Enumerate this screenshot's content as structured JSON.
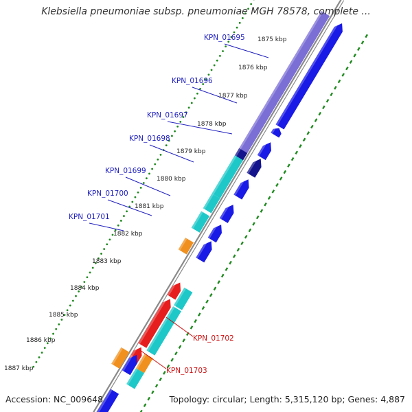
{
  "title": "Klebsiella pneumoniae subsp. pneumoniae MGH 78578, complete ...",
  "accession": "Accession: NC_009648",
  "summary": "Topology: circular; Length: 5,315,120 bp; Genes: 4,887",
  "colors": {
    "blue": "#1a1ae6",
    "purple": "#7b6fd6",
    "navy": "#14148c",
    "cyan": "#1ec8c8",
    "orange": "#f0901e",
    "red": "#e61e1e",
    "label_blue": "#2020c0",
    "label_red": "#cc1010",
    "tick": "#1f8a1f",
    "backbone": "#8a8a8a"
  },
  "kbp_ticks": [
    "1875 kbp",
    "1876 kbp",
    "1877 kbp",
    "1878 kbp",
    "1879 kbp",
    "1880 kbp",
    "1881 kbp",
    "1882 kbp",
    "1883 kbp",
    "1884 kbp",
    "1885 kbp",
    "1886 kbp",
    "1887 kbp"
  ],
  "gene_labels_left": [
    "KPN_01695",
    "KPN_01696",
    "KPN_01697",
    "KPN_01698",
    "KPN_01699",
    "KPN_01700",
    "KPN_01701"
  ],
  "gene_labels_right": [
    "KPN_01702",
    "KPN_01703"
  ]
}
